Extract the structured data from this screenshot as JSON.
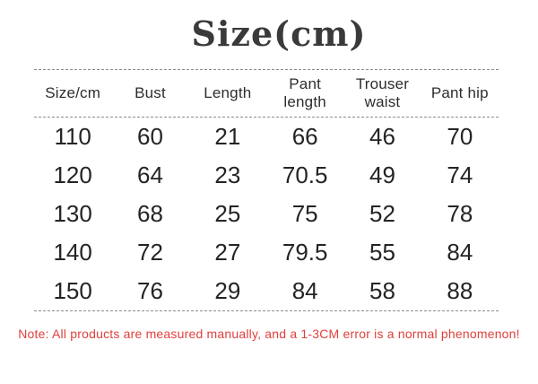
{
  "title": "Size(cm)",
  "table": {
    "headers": [
      "Size/cm",
      "Bust",
      "Length",
      "Pant length",
      "Trouser waist",
      "Pant hip"
    ],
    "rows": [
      [
        "110",
        "60",
        "21",
        "66",
        "46",
        "70"
      ],
      [
        "120",
        "64",
        "23",
        "70.5",
        "49",
        "74"
      ],
      [
        "130",
        "68",
        "25",
        "75",
        "52",
        "78"
      ],
      [
        "140",
        "72",
        "27",
        "79.5",
        "55",
        "84"
      ],
      [
        "150",
        "76",
        "29",
        "84",
        "58",
        "88"
      ]
    ]
  },
  "note": "Note: All products are measured manually, and a 1-3CM error is a normal phenomenon!",
  "colors": {
    "note_red": "#e0403c",
    "text": "#242424",
    "line_gray": "#8c8c8c"
  },
  "chart_data": {
    "type": "table",
    "title": "Size(cm)",
    "columns": [
      "Size/cm",
      "Bust",
      "Length",
      "Pant length",
      "Trouser waist",
      "Pant hip"
    ],
    "rows": [
      [
        110,
        60,
        21,
        66,
        46,
        70
      ],
      [
        120,
        64,
        23,
        70.5,
        49,
        74
      ],
      [
        130,
        68,
        25,
        75,
        52,
        78
      ],
      [
        140,
        72,
        27,
        79.5,
        55,
        84
      ],
      [
        150,
        76,
        29,
        84,
        58,
        88
      ]
    ],
    "footnote": "Note: All products are measured manually, and a 1-3CM error is a normal phenomenon!"
  }
}
